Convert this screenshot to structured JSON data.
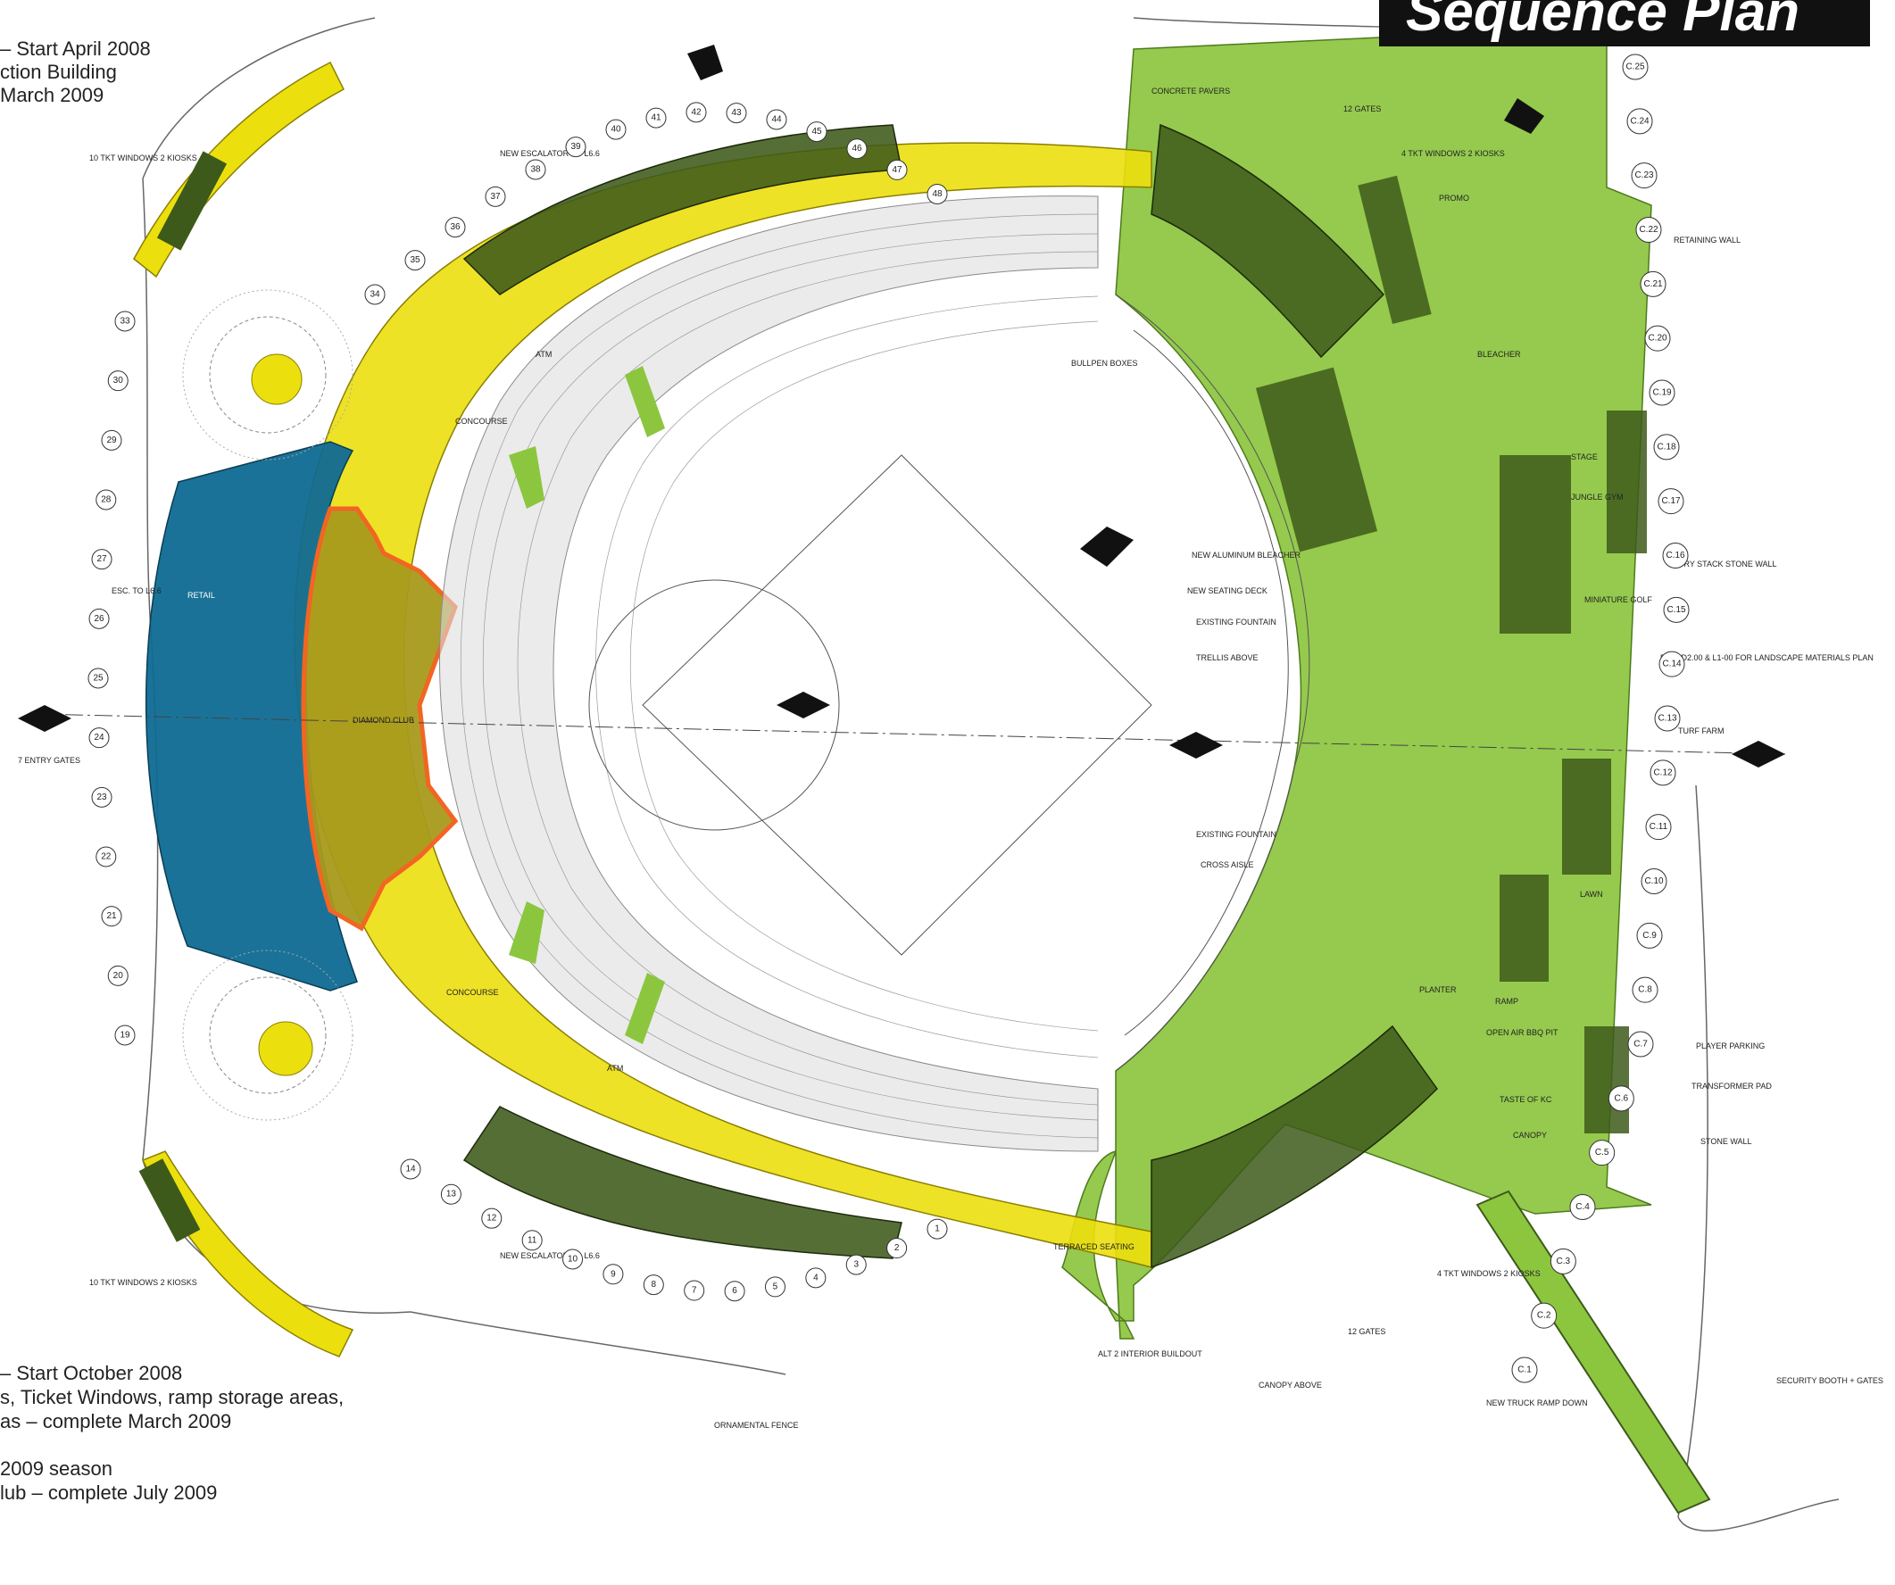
{
  "title": "Sequence Plan",
  "legend": {
    "phase1_line1": "– Start April 2008",
    "phase1_line2": "ction Building",
    "phase1_line3": "March 2009",
    "phase2_line1": "– Start October 2008",
    "phase2_line2": "s, Ticket Windows, ramp storage areas,",
    "phase2_line3": "as – complete March 2009",
    "phase3_line1": "2009 season",
    "phase3_line2": "lub – complete July 2009"
  },
  "colors": {
    "yellow": "#ecdf0e",
    "light_green": "#8cc63f",
    "dark_green": "#3d5a1a",
    "blue": "#0f6a92",
    "club_outline": "#f26522",
    "club_fill": "#a89a1c"
  },
  "labels": {
    "concourse_top": "CONCOURSE",
    "concourse_bottom": "CONCOURSE",
    "diamond_club": "DIAMOND CLUB",
    "retail": "RETAIL",
    "bleacher": "BLEACHER",
    "stage": "STAGE",
    "jungle_gym": "JUNGLE GYM",
    "miniature_golf": "MINIATURE GOLF",
    "turf_farm": "TURF FARM",
    "lawn": "LAWN",
    "planter": "PLANTER",
    "canopy": "CANOPY",
    "taste_of_kc": "TASTE OF KC",
    "open_air_bbq": "OPEN AIR BBQ PIT",
    "ramp": "RAMP",
    "atm_top": "ATM",
    "atm_bottom": "ATM",
    "new_escalator_top": "NEW ESCALATOR TO L6.6",
    "new_escalator_bottom": "NEW ESCALATOR TO L6.6",
    "ten_tkt_top": "10 TKT WINDOWS 2 KIOSKS",
    "ten_tkt_bottom": "10 TKT WINDOWS 2 KIOSKS",
    "four_tkt_top": "4 TKT WINDOWS 2 KIOSKS",
    "four_tkt_bottom": "4 TKT WINDOWS 2 KIOSKS",
    "twelve_gates_top": "12 GATES",
    "twelve_gates_bottom": "12 GATES",
    "dry_stack": "DRY STACK STONE WALL",
    "retaining_wall": "RETAINING WALL",
    "landscape_note": "RE: SD2.00 & L1-00 FOR LANDSCAPE MATERIALS PLAN",
    "new_aluminum_bleacher": "NEW ALUMINUM BLEACHER",
    "new_seating_deck": "NEW SEATING DECK",
    "existing_fountain_top": "EXISTING FOUNTAIN",
    "trellis_above": "TRELLIS ABOVE",
    "existing_fountain_bottom": "EXISTING FOUNTAIN",
    "cross_aisle": "CROSS AISLE",
    "transformer": "TRANSFORMER PAD",
    "stone_wall": "STONE WALL",
    "player_parking": "PLAYER PARKING",
    "security_booth": "SECURITY BOOTH + GATES",
    "new_truck_ramp": "NEW TRUCK RAMP DOWN",
    "ornamental_fence": "ORNAMENTAL FENCE",
    "canopy_above": "CANOPY ABOVE",
    "alt2": "ALT 2 INTERIOR BUILDOUT",
    "terraced_seating": "TERRACED SEATING",
    "entry_gates": "7 ENTRY GATES",
    "esc_to_l6": "ESC. TO L6.6",
    "concrete_pavers": "CONCRETE PAVERS",
    "promo": "PROMO",
    "bullpen": "BULLPEN BOXES"
  },
  "gridline_numbers_top": [
    "34",
    "35",
    "36",
    "37",
    "38",
    "39",
    "40",
    "41",
    "42",
    "43",
    "44",
    "45",
    "46",
    "47",
    "48"
  ],
  "gridline_numbers_bottom": [
    "14",
    "13",
    "12",
    "11",
    "10",
    "9",
    "8",
    "7",
    "6",
    "5",
    "4",
    "3",
    "2",
    "1"
  ],
  "gridline_numbers_left": [
    "33",
    "30",
    "29",
    "28",
    "27",
    "26",
    "25",
    "24",
    "23",
    "22",
    "21",
    "20",
    "19"
  ],
  "gridline_c_right": [
    "C.25",
    "C.24",
    "C.23",
    "C.22",
    "C.21",
    "C.20",
    "C.19",
    "C.18",
    "C.17",
    "C.16",
    "C.15",
    "C.14",
    "C.13",
    "C.12",
    "C.11",
    "C.10",
    "C.9",
    "C.8",
    "C.7",
    "C.6",
    "C.5",
    "C.4",
    "C.3",
    "C.2",
    "C.1"
  ]
}
